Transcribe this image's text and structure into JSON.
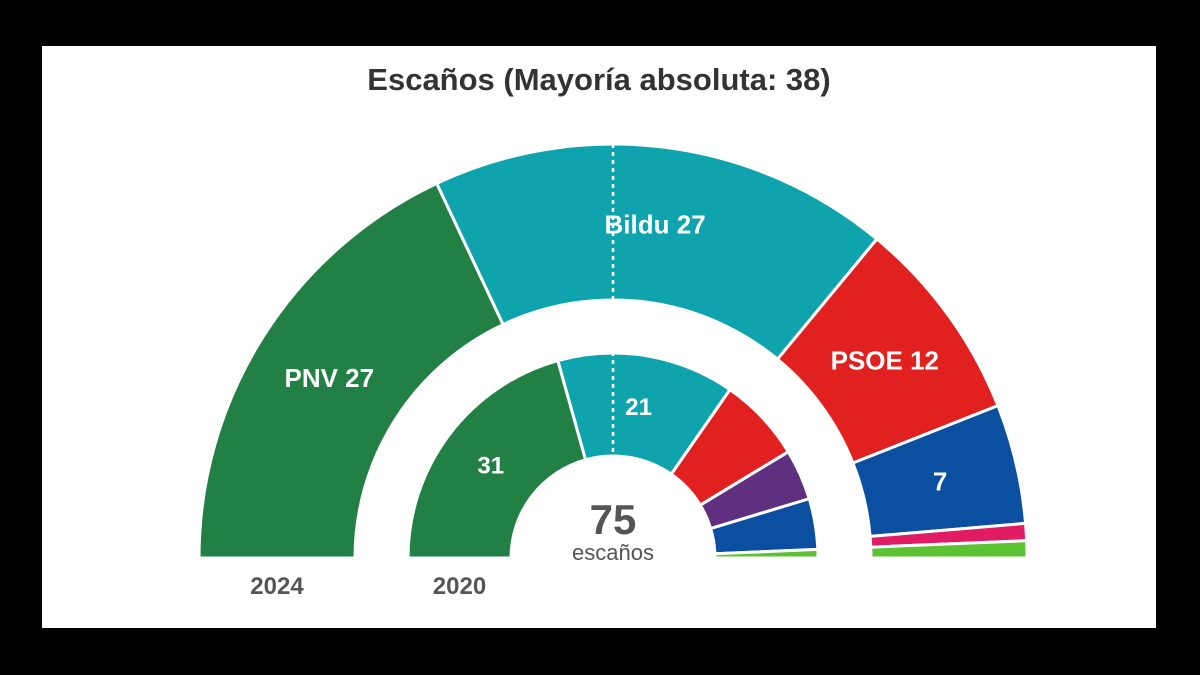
{
  "chart_data": {
    "type": "semicircle-donut",
    "title": "Escaños (Mayoría absoluta: 38)",
    "total_seats": 75,
    "total_label": "75",
    "total_unit": "escaños",
    "majority": 38,
    "rings": [
      {
        "name": "2024",
        "label": "2024",
        "segments": [
          {
            "party": "PNV",
            "seats": 27,
            "color": "#228044",
            "label": "PNV 27"
          },
          {
            "party": "Bildu",
            "seats": 27,
            "color": "#0fa3ad",
            "label": "Bildu 27"
          },
          {
            "party": "PSOE",
            "seats": 12,
            "color": "#e0211f",
            "label": "PSOE 12"
          },
          {
            "party": "",
            "seats": 7,
            "color": "#0a4fa0",
            "label": "7"
          },
          {
            "party": "",
            "seats": 1,
            "color": "#e01c64",
            "label": ""
          },
          {
            "party": "",
            "seats": 1,
            "color": "#5cc234",
            "label": ""
          }
        ]
      },
      {
        "name": "2020",
        "label": "2020",
        "segments": [
          {
            "party": "PNV",
            "seats": 31,
            "color": "#228044",
            "label": "31"
          },
          {
            "party": "Bildu",
            "seats": 21,
            "color": "#0fa3ad",
            "label": "21"
          },
          {
            "party": "PSOE",
            "seats": 10,
            "color": "#e0211f",
            "label": ""
          },
          {
            "party": "",
            "seats": 6,
            "color": "#5f2f80",
            "label": ""
          },
          {
            "party": "",
            "seats": 6,
            "color": "#0a4fa0",
            "label": ""
          },
          {
            "party": "",
            "seats": 1,
            "color": "#5cc234",
            "label": ""
          }
        ]
      }
    ]
  }
}
